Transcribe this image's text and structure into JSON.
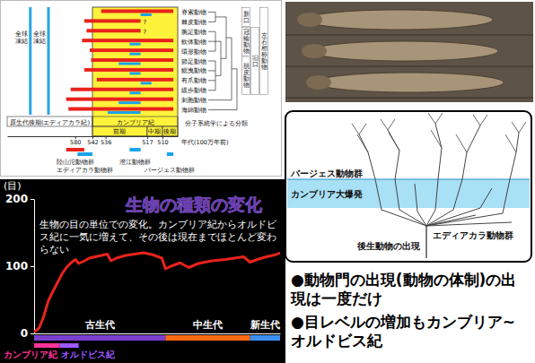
{
  "chart_data": [
    {
      "type": "bar",
      "orientation": "horizontal",
      "categories": [
        "脊索動物",
        "棘皮動物",
        "腕足動物",
        "軟体動物",
        "環形動物",
        "節足動物",
        "鰓曳動物",
        "有爪動物",
        "緩歩動物",
        "刺胞動物",
        "海綿動物"
      ],
      "values": [
        538,
        560,
        555,
        565,
        548,
        545,
        560,
        540,
        590,
        600,
        595
      ],
      "end": [
        505,
        520,
        520,
        505,
        505,
        505,
        505,
        505,
        505,
        505,
        505
      ],
      "color": "#e8231b",
      "fossil_start": [
        520,
        null,
        null,
        525,
        525,
        530,
        525,
        520,
        525,
        530,
        535
      ],
      "fossil_end": [
        515,
        null,
        null,
        520,
        520,
        520,
        520,
        515,
        520,
        520,
        520
      ],
      "row_notes": [
        null,
        "?",
        "?",
        null,
        null,
        null,
        null,
        null,
        null,
        null,
        null
      ],
      "xlim": [
        730,
        503
      ],
      "xticks": [
        580,
        542,
        536,
        517,
        510
      ],
      "x_label": "年代(100万年前)",
      "glaciations": [
        {
          "label": "全球凍結",
          "start": 682,
          "end": 676
        },
        {
          "label": "全球凍結",
          "start": 642,
          "end": 636
        }
      ],
      "periods": [
        {
          "label": "原生代後期(エディアカラ紀)",
          "start": 730,
          "end": 542
        },
        {
          "label": "カンブリア紀",
          "start": 542,
          "end": 503,
          "subdivisions": [
            {
              "label": "前期",
              "start": 542,
              "end": 517
            },
            {
              "label": "中期",
              "start": 517,
              "end": 510
            },
            {
              "label": "後期",
              "start": 510,
              "end": 503
            }
          ]
        }
      ],
      "faunas": [
        {
          "label": "陸山沱動物群",
          "start": 600,
          "end": 560,
          "color": "#e8231b"
        },
        {
          "label": "エディアカラ動物群",
          "start": 575,
          "end": 542,
          "color": "#1aa3e8"
        },
        {
          "label": "澄江動物群",
          "start": 525,
          "end": 520,
          "color": "#1aa3e8"
        },
        {
          "label": "バージェス動物群",
          "start": 508,
          "end": 505,
          "color": "#1aa3e8"
        }
      ],
      "clades": [
        {
          "label": "新口",
          "rows": [
            0,
            1
          ]
        },
        {
          "label": "冠輪動物",
          "rows": [
            2,
            4
          ]
        },
        {
          "label": "脱皮動物",
          "rows": [
            5,
            8
          ]
        },
        {
          "label": "旧口",
          "rows": [
            2,
            8
          ]
        },
        {
          "label": "左右相称動物",
          "rows": [
            0,
            8
          ]
        }
      ],
      "tree_caption": "分子系統学による分類"
    },
    {
      "type": "line",
      "title": "生物の種類の変化",
      "subtitle": "生物の目の単位での変化。カンブリア紀からオルドビス紀に一気に増えて、その後は現在までほとんど変わらない",
      "y_label": "(目)",
      "x": [
        541,
        530,
        520,
        510,
        500,
        490,
        480,
        470,
        460,
        450,
        443,
        430,
        420,
        400,
        380,
        372,
        360,
        340,
        320,
        300,
        280,
        260,
        252,
        240,
        220,
        201,
        180,
        150,
        120,
        100,
        80,
        66,
        50,
        30,
        10,
        0
      ],
      "values": [
        2,
        8,
        25,
        48,
        62,
        75,
        88,
        98,
        105,
        110,
        104,
        108,
        112,
        115,
        118,
        108,
        112,
        116,
        118,
        120,
        117,
        112,
        96,
        100,
        105,
        98,
        104,
        108,
        110,
        112,
        114,
        106,
        110,
        114,
        117,
        120
      ],
      "color": "#e8231b",
      "xlim": [
        541,
        0
      ],
      "ylim": [
        0,
        200
      ],
      "yticks": [
        0,
        100,
        200
      ],
      "tick_labels": "y",
      "periods": [
        {
          "label": "カンブリア紀",
          "start": 541,
          "end": 485,
          "color": "#ff3399"
        },
        {
          "label": "オルドビス紀",
          "start": 485,
          "end": 443,
          "color": "#9b59ff"
        }
      ],
      "eras": [
        {
          "label": "古生代",
          "start": 541,
          "end": 252,
          "color": "#7b3fd0"
        },
        {
          "label": "中生代",
          "start": 252,
          "end": 66,
          "color": "#ff6a13"
        },
        {
          "label": "新生代",
          "start": 66,
          "end": 0,
          "color": "#3c8ff0"
        }
      ]
    }
  ],
  "diagram": {
    "band_top_label": "バージェス動物群",
    "band_label": "カンブリア大爆発",
    "root_label": "後生動物の出現",
    "side_label": "エディアカラ動物群"
  },
  "notes": [
    "●動物門の出現(動物の体制)の出現は一度だけ",
    "●目レベルの増加もカンブリア~オルドビス紀"
  ]
}
